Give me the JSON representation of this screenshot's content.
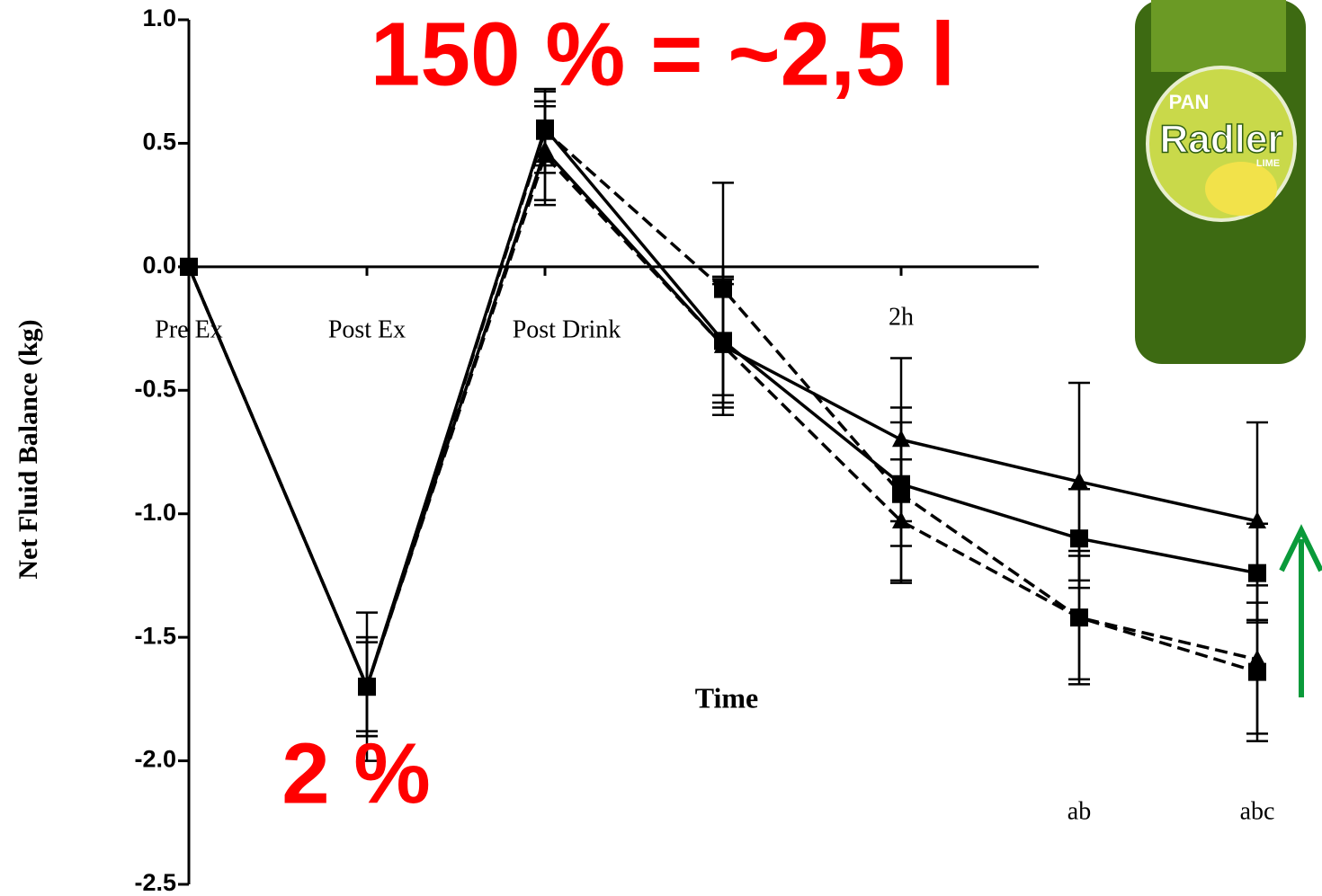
{
  "chart_data": {
    "type": "line",
    "y_label": "Net Fluid Balance (kg)",
    "x_label": "Time",
    "annotations": [
      "150 % = ~2,5 l",
      "2 %"
    ],
    "categories": [
      "Pre Ex",
      "Post Ex",
      "Post Drink",
      null,
      "2h",
      null,
      null
    ],
    "significance": [
      null,
      null,
      null,
      null,
      null,
      "ab",
      "abc"
    ],
    "ylim": [
      -2.5,
      1.0
    ],
    "yticks": [
      {
        "value": 1.0,
        "label": "1.0"
      },
      0.5,
      {
        "value": 0.0,
        "label": "0.0"
      },
      -0.5,
      {
        "value": -1.0,
        "label": "-1.0"
      },
      -1.5,
      {
        "value": -2.0,
        "label": "-2.0"
      },
      -2.5
    ],
    "series": [
      {
        "color": "#000000",
        "marker": "triangle",
        "dashed": false,
        "values": [
          0,
          -1.7,
          0.47,
          -0.32,
          -0.7,
          -0.87,
          -1.03
        ],
        "errors": [
          0,
          0.2,
          0.2,
          0.25,
          0.33,
          0.4,
          0.4
        ]
      },
      {
        "color": "#000000",
        "marker": "square",
        "dashed": false,
        "values": [
          0,
          -1.7,
          0.56,
          -0.3,
          -0.88,
          -1.1,
          -1.24
        ],
        "errors": [
          0,
          0.18,
          0.15,
          0.25,
          0.25,
          0.2,
          0.2
        ]
      },
      {
        "color": "#000000",
        "marker": "triangle",
        "dashed": true,
        "values": [
          0,
          -1.7,
          0.45,
          -0.32,
          -1.03,
          -1.42,
          -1.59
        ],
        "errors": [
          0,
          0.2,
          0.2,
          0.28,
          0.25,
          0.25,
          0.3
        ]
      },
      {
        "color": "#000000",
        "marker": "square",
        "dashed": true,
        "values": [
          0,
          -1.7,
          0.55,
          -0.09,
          -0.92,
          -1.42,
          -1.64
        ],
        "errors": [
          0,
          0.3,
          0.17,
          0.43,
          0.35,
          0.27,
          0.28
        ]
      }
    ]
  },
  "image": {
    "brand": "PAN",
    "label": "Radler",
    "flavor": "LIME"
  }
}
